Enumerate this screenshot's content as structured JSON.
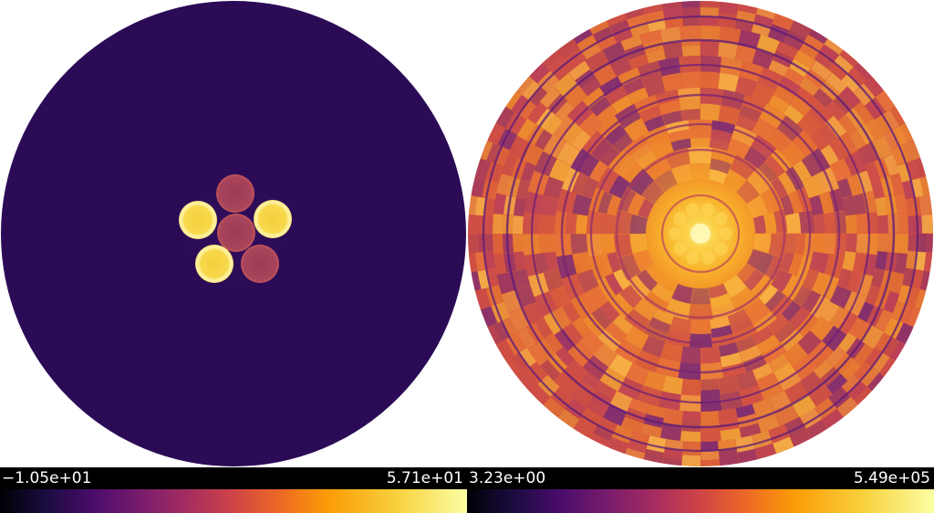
{
  "panels": [
    {
      "colorbar": {
        "min_label": "−1.05e+01",
        "max_label": "5.71e+01"
      },
      "background_color": "#2b0b56",
      "colors": {
        "peak": "#f4d84a",
        "mid": "#a34057",
        "rim": "#fff2a0"
      }
    },
    {
      "colorbar": {
        "min_label": "3.23e+00",
        "max_label": "5.49e+05"
      },
      "colors": {
        "base": "#e0603a",
        "dark": "#5a197a",
        "bright": "#fcd24a",
        "center": "#fbf5a0"
      }
    }
  ],
  "colormap": "inferno"
}
